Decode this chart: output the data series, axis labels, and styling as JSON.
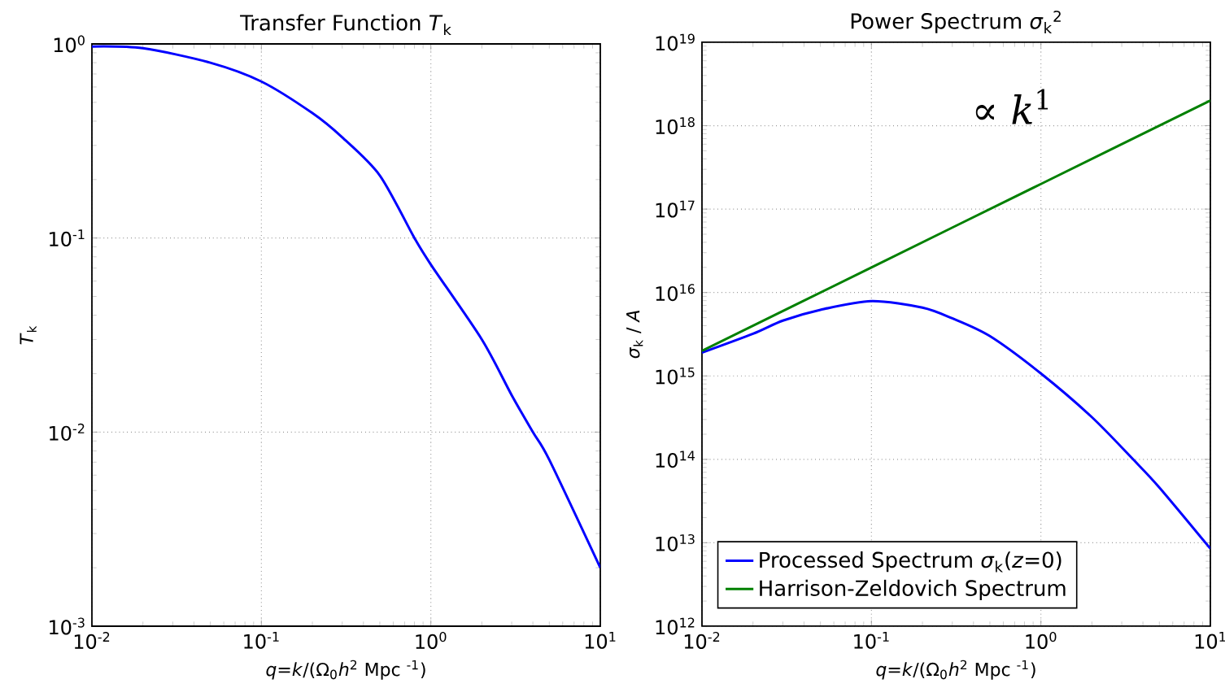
{
  "chart_data": [
    {
      "type": "line",
      "title": "Transfer Function *T*$_{k}$",
      "xlabel": "*q*=*k*/(Ω$_{0}$*h*$^{2}$ Mpc $^{-1}$)",
      "ylabel": "*T*$_{k}$",
      "log": "xy",
      "grid": true,
      "x": [
        0.01,
        0.02,
        0.05,
        0.1,
        0.2,
        0.3,
        0.5,
        0.8,
        1,
        2,
        3,
        4,
        5,
        10
      ],
      "series": [
        {
          "color": "#0000ff",
          "values": [
            0.97,
            0.95,
            0.8,
            0.64,
            0.44,
            0.33,
            0.21,
            0.1,
            0.073,
            0.03,
            0.0155,
            0.01,
            0.0072,
            0.002
          ]
        }
      ],
      "xlim": [
        0.01,
        10
      ],
      "ylim": [
        0.001,
        1
      ],
      "xticks": [
        {
          "value": 0.01,
          "label": "10$^{-2}$"
        },
        {
          "value": 0.1,
          "label": "10$^{-1}$"
        },
        {
          "value": 1,
          "label": "10$^{0}$"
        },
        {
          "value": 10,
          "label": "10$^{1}$"
        }
      ],
      "yticks": [
        {
          "value": 0.001,
          "label": "10$^{-3}$"
        },
        {
          "value": 0.01,
          "label": "10$^{-2}$"
        },
        {
          "value": 0.1,
          "label": "10$^{-1}$"
        },
        {
          "value": 1,
          "label": "10$^{0}$"
        }
      ]
    },
    {
      "type": "line",
      "title": "Power Spectrum *σ*$_{k}$$^{2}$",
      "xlabel": "*q*=*k*/(Ω$_{0}$*h*$^{2}$ Mpc $^{-1}$)",
      "ylabel": "*σ*$_{k}$ / *A*",
      "log": "xy",
      "grid": true,
      "legend": "bottom left",
      "series": [
        {
          "name": "Processed Spectrum *σ*$_{k}$(*z*=0)",
          "color": "#0000ff",
          "x": [
            0.01,
            0.02,
            0.03,
            0.05,
            0.1,
            0.2,
            0.3,
            0.5,
            1,
            2,
            3.5,
            5,
            10
          ],
          "values": [
            1900000000000000.0,
            3200000000000000.0,
            4600000000000000.0,
            6200000000000000.0,
            7900000000000000.0,
            6600000000000000.0,
            4900000000000000.0,
            3000000000000000.0,
            1070000000000000.0,
            320000000000000.0,
            100000000000000.0,
            46000000000000.0,
            8500000000000.0
          ]
        },
        {
          "name": "Harrison-Zeldovich Spectrum",
          "color": "#008000",
          "x": [
            0.01,
            0.1,
            1,
            10
          ],
          "values": [
            2000000000000000.0,
            2e+16,
            2e+17,
            2e+18
          ]
        }
      ],
      "annotations": [
        "∝ *k*$^{1}$"
      ],
      "xlim": [
        0.01,
        10
      ],
      "ylim": [
        1000000000000.0,
        1e+19
      ],
      "xticks": [
        {
          "value": 0.01,
          "label": "10$^{-2}$"
        },
        {
          "value": 0.1,
          "label": "10$^{-1}$"
        },
        {
          "value": 1,
          "label": "10$^{0}$"
        },
        {
          "value": 10,
          "label": "10$^{1}$"
        }
      ],
      "yticks": [
        {
          "value": 1000000000000.0,
          "label": "10$^{12}$"
        },
        {
          "value": 10000000000000.0,
          "label": "10$^{13}$"
        },
        {
          "value": 100000000000000.0,
          "label": "10$^{14}$"
        },
        {
          "value": 1000000000000000.0,
          "label": "10$^{15}$"
        },
        {
          "value": 1e+16,
          "label": "10$^{16}$"
        },
        {
          "value": 1e+17,
          "label": "10$^{17}$"
        },
        {
          "value": 1e+18,
          "label": "10$^{18}$"
        },
        {
          "value": 1e+19,
          "label": "10$^{19}$"
        }
      ]
    }
  ]
}
